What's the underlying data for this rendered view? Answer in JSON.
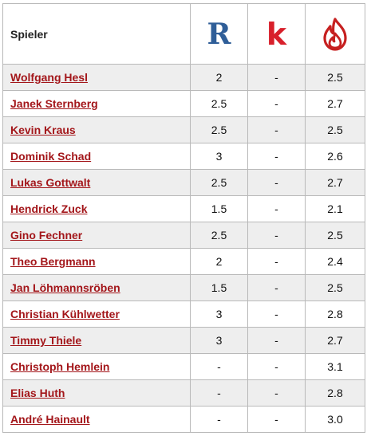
{
  "header": {
    "player_label": "Spieler",
    "col1_logo_text": "R",
    "col1_icon": "r-logo-icon",
    "col2_logo_text": "k",
    "col2_icon": "k-logo-icon",
    "col3_icon": "flame-logo-icon"
  },
  "colors": {
    "link_red": "#a3161a",
    "r_logo_blue": "#2f5e98",
    "k_logo_red": "#d8202b",
    "row_alt_gray": "#eeeeee",
    "border_gray": "#b9b9b9"
  },
  "rows": [
    {
      "name": "Wolfgang Hesl",
      "r": "2",
      "k": "-",
      "f": "2.5"
    },
    {
      "name": "Janek Sternberg",
      "r": "2.5",
      "k": "-",
      "f": "2.7"
    },
    {
      "name": "Kevin Kraus",
      "r": "2.5",
      "k": "-",
      "f": "2.5"
    },
    {
      "name": "Dominik Schad",
      "r": "3",
      "k": "-",
      "f": "2.6"
    },
    {
      "name": "Lukas Gottwalt",
      "r": "2.5",
      "k": "-",
      "f": "2.7"
    },
    {
      "name": "Hendrick Zuck",
      "r": "1.5",
      "k": "-",
      "f": "2.1"
    },
    {
      "name": "Gino Fechner",
      "r": "2.5",
      "k": "-",
      "f": "2.5"
    },
    {
      "name": "Theo Bergmann",
      "r": "2",
      "k": "-",
      "f": "2.4"
    },
    {
      "name": "Jan Löhmannsröben",
      "r": "1.5",
      "k": "-",
      "f": "2.5"
    },
    {
      "name": "Christian Kühlwetter",
      "r": "3",
      "k": "-",
      "f": "2.8"
    },
    {
      "name": "Timmy Thiele",
      "r": "3",
      "k": "-",
      "f": "2.7"
    },
    {
      "name": "Christoph Hemlein",
      "r": "-",
      "k": "-",
      "f": "3.1"
    },
    {
      "name": "Elias Huth",
      "r": "-",
      "k": "-",
      "f": "2.8"
    },
    {
      "name": "André Hainault",
      "r": "-",
      "k": "-",
      "f": "3.0"
    }
  ]
}
